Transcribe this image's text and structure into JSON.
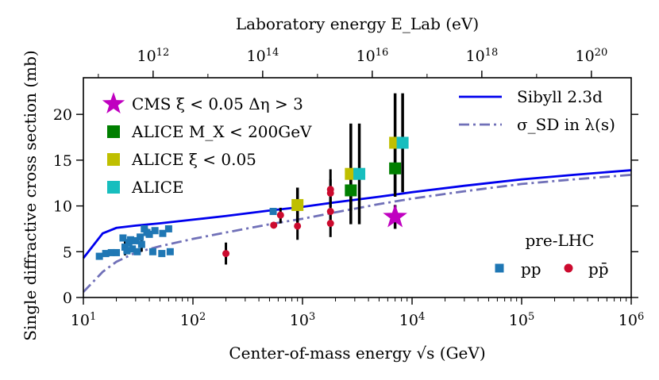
{
  "chart_data": {
    "type": "scatter",
    "xlabel": "Center-of-mass energy √s (GeV)",
    "ylabel": "Single diffractive cross section (mb)",
    "top_xlabel": "Laboratory energy E_Lab (eV)",
    "xscale": "log",
    "xlim": [
      10,
      1000000
    ],
    "ylim": [
      0,
      24
    ],
    "grid": false,
    "x_ticks": [
      {
        "value": 10,
        "base": "10",
        "exp": "1"
      },
      {
        "value": 100,
        "base": "10",
        "exp": "2"
      },
      {
        "value": 1000,
        "base": "10",
        "exp": "3"
      },
      {
        "value": 10000,
        "base": "10",
        "exp": "4"
      },
      {
        "value": 100000,
        "base": "10",
        "exp": "5"
      },
      {
        "value": 1000000,
        "base": "10",
        "exp": "6"
      }
    ],
    "y_ticks": [
      "0",
      "5",
      "10",
      "15",
      "20"
    ],
    "top_ticks": [
      {
        "value_ev": 1000000000000.0,
        "base": "10",
        "exp": "12"
      },
      {
        "value_ev": 100000000000000.0,
        "base": "10",
        "exp": "14"
      },
      {
        "value_ev": 1e+16,
        "base": "10",
        "exp": "16"
      },
      {
        "value_ev": 1e+18,
        "base": "10",
        "exp": "18"
      },
      {
        "value_ev": 1e+20,
        "base": "10",
        "exp": "20"
      }
    ],
    "series": [
      {
        "name": "Sibyll 2.3d",
        "kind": "line",
        "style": "solid",
        "color": "#0000ee",
        "x": [
          10,
          15,
          20,
          30,
          50,
          100,
          200,
          500,
          1000,
          2000,
          5000,
          10000,
          30000,
          100000,
          300000,
          1000000
        ],
        "y": [
          4.3,
          7.0,
          7.6,
          7.85,
          8.1,
          8.5,
          8.9,
          9.5,
          9.9,
          10.4,
          11.0,
          11.5,
          12.2,
          12.9,
          13.4,
          13.9
        ]
      },
      {
        "name": "σ_SD in λ(s)",
        "kind": "line",
        "style": "dashdot",
        "color": "#7070b8",
        "x": [
          10,
          15,
          20,
          30,
          50,
          100,
          200,
          500,
          1000,
          2000,
          5000,
          10000,
          30000,
          100000,
          300000,
          1000000
        ],
        "y": [
          0.6,
          2.8,
          3.9,
          4.9,
          5.6,
          6.4,
          7.1,
          8.0,
          8.6,
          9.3,
          10.2,
          10.8,
          11.6,
          12.4,
          12.9,
          13.4
        ]
      },
      {
        "name": "pp",
        "kind": "points",
        "marker": "square",
        "color": "#1f77b4",
        "group": "pre-LHC",
        "points": [
          {
            "x": 14,
            "y": 4.5
          },
          {
            "x": 16,
            "y": 4.8
          },
          {
            "x": 18,
            "y": 4.9
          },
          {
            "x": 20,
            "y": 4.9
          },
          {
            "x": 23,
            "y": 6.5
          },
          {
            "x": 24,
            "y": 5.5
          },
          {
            "x": 25,
            "y": 5.1
          },
          {
            "x": 26,
            "y": 6.0
          },
          {
            "x": 27,
            "y": 6.3
          },
          {
            "x": 28,
            "y": 5.3
          },
          {
            "x": 30,
            "y": 6.2
          },
          {
            "x": 31,
            "y": 5.0
          },
          {
            "x": 33,
            "y": 6.6
          },
          {
            "x": 34,
            "y": 5.8
          },
          {
            "x": 36,
            "y": 7.5
          },
          {
            "x": 38,
            "y": 7.1
          },
          {
            "x": 40,
            "y": 6.9
          },
          {
            "x": 43,
            "y": 5.0
          },
          {
            "x": 45,
            "y": 7.3
          },
          {
            "x": 52,
            "y": 4.8
          },
          {
            "x": 53,
            "y": 7.0
          },
          {
            "x": 60,
            "y": 7.5
          },
          {
            "x": 62,
            "y": 5.0
          },
          {
            "x": 540,
            "y": 9.4
          }
        ],
        "err": [
          {
            "x": 24,
            "lo": 4.6,
            "hi": 6.5
          },
          {
            "x": 34,
            "lo": 5.0,
            "hi": 6.6
          },
          {
            "x": 38,
            "lo": 6.6,
            "hi": 7.6
          }
        ]
      },
      {
        "name": "pp̄",
        "kind": "points",
        "marker": "circle",
        "color": "#cc0a2e",
        "group": "pre-LHC",
        "points": [
          {
            "x": 200,
            "y": 4.8,
            "lo": 3.6,
            "hi": 6.0
          },
          {
            "x": 546,
            "y": 7.9
          },
          {
            "x": 630,
            "y": 9.0,
            "lo": 8.1,
            "hi": 9.8
          },
          {
            "x": 900,
            "y": 7.8,
            "lo": 6.3,
            "hi": 9.3
          },
          {
            "x": 1800,
            "y": 8.1,
            "lo": 6.6,
            "hi": 9.6
          },
          {
            "x": 1800,
            "y": 9.4,
            "lo": 7.9,
            "hi": 10.9
          },
          {
            "x": 1800,
            "y": 11.4,
            "lo": 9.9,
            "hi": 12.9
          },
          {
            "x": 1800,
            "y": 11.8,
            "lo": 9.9,
            "hi": 14.0
          }
        ]
      },
      {
        "name": "CMS ξ < 0.05 Δη > 3",
        "kind": "points",
        "marker": "star",
        "color": "#c000c0",
        "points": [
          {
            "x": 7000,
            "y": 8.8,
            "lo": 7.5,
            "hi": 10.1
          }
        ]
      },
      {
        "name": "ALICE M_X < 200GeV",
        "kind": "points",
        "marker": "square",
        "color": "#007f00",
        "points": [
          {
            "x": 2760,
            "y": 11.7,
            "lo": 9.5,
            "hi": 13.9
          },
          {
            "x": 7000,
            "y": 14.1,
            "lo": 11.0,
            "hi": 17.2
          }
        ]
      },
      {
        "name": "ALICE ξ < 0.05",
        "kind": "points",
        "marker": "square",
        "color": "#bfbf00",
        "points": [
          {
            "x": 900,
            "y": 10.1,
            "lo": 8.2,
            "hi": 12.0
          },
          {
            "x": 2760,
            "y": 13.5,
            "lo": 8.0,
            "hi": 19.0
          },
          {
            "x": 7000,
            "y": 16.9,
            "lo": 11.5,
            "hi": 22.3
          }
        ]
      },
      {
        "name": "ALICE",
        "kind": "points",
        "marker": "square",
        "color": "#17bebe",
        "points": [
          {
            "x": 3300,
            "y": 13.5,
            "lo": 8.0,
            "hi": 19.0
          },
          {
            "x": 8200,
            "y": 16.9,
            "lo": 11.5,
            "hi": 22.3
          }
        ]
      }
    ],
    "legend": {
      "left": [
        {
          "label": "CMS ξ < 0.05 Δη > 3",
          "marker": "star",
          "color": "#c000c0"
        },
        {
          "label": "ALICE M_X < 200GeV",
          "marker": "square",
          "color": "#007f00"
        },
        {
          "label": "ALICE ξ < 0.05",
          "marker": "square",
          "color": "#bfbf00"
        },
        {
          "label": "ALICE",
          "marker": "square",
          "color": "#17bebe"
        }
      ],
      "right": [
        {
          "label": "Sibyll 2.3d",
          "style": "solid",
          "color": "#0000ee"
        },
        {
          "label": "σ_SD in λ(s)",
          "style": "dashdot",
          "color": "#7070b8"
        }
      ],
      "pre_lhc_title": "pre-LHC",
      "pre_lhc_items": [
        {
          "label": "pp",
          "marker": "square",
          "color": "#1f77b4"
        },
        {
          "label": "pp̄",
          "marker": "circle",
          "color": "#cc0a2e"
        }
      ]
    }
  }
}
